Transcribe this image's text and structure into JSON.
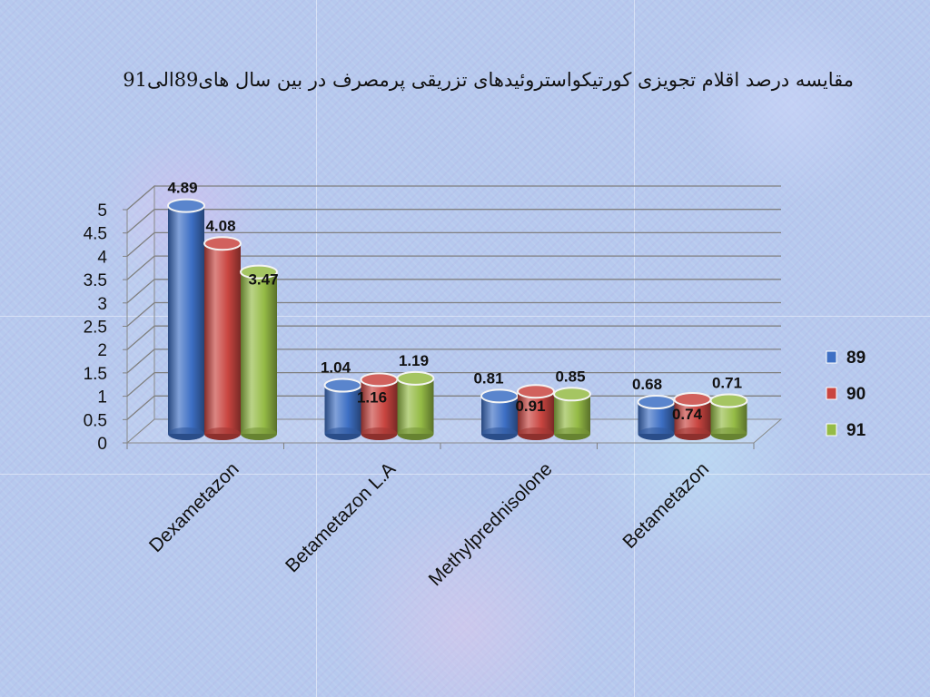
{
  "chart_data": {
    "type": "bar",
    "title": "مقایسه درصد اقلام تجویزی کورتیکواستروئیدهای تزریقی پرمصرف در بین سال های89الی91",
    "categories": [
      "Dexametazon",
      "Betametazon L.A",
      "Methylprednisolone",
      "Betametazon"
    ],
    "series": [
      {
        "name": "89",
        "color": "#3d6fc4",
        "values": [
          4.89,
          1.04,
          0.81,
          0.68
        ]
      },
      {
        "name": "90",
        "color": "#c94540",
        "values": [
          4.08,
          1.16,
          0.91,
          0.74
        ]
      },
      {
        "name": "91",
        "color": "#95bb46",
        "values": [
          3.47,
          1.19,
          0.85,
          0.71
        ]
      }
    ],
    "ylim": [
      0,
      5
    ],
    "yticks": [
      "0",
      "0.5",
      "1",
      "1.5",
      "2",
      "2.5",
      "3",
      "3.5",
      "4",
      "4.5",
      "5"
    ],
    "grid": true,
    "legend": "right",
    "xlabel": "",
    "ylabel": ""
  }
}
